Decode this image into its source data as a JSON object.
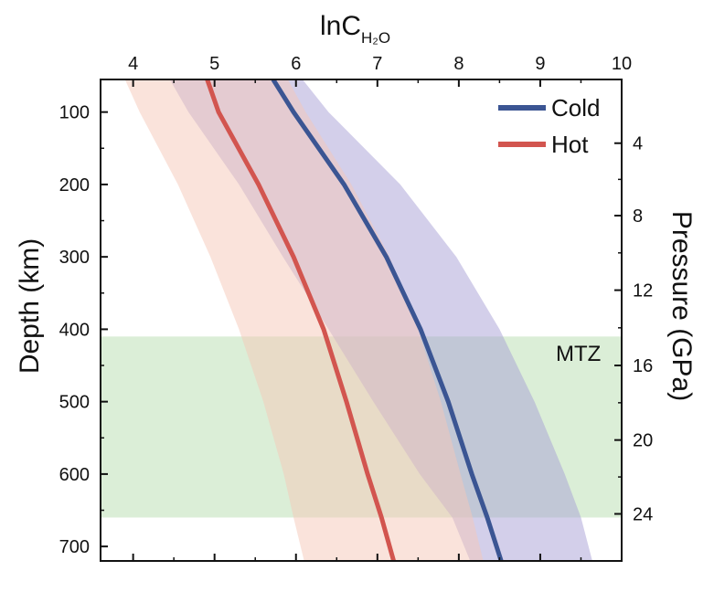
{
  "chart_data": {
    "type": "line",
    "title": "",
    "x_axis": {
      "label_main": "lnC",
      "label_sub": "H₂O",
      "position": "top",
      "ticks": [
        "4",
        "5",
        "6",
        "7",
        "8",
        "9",
        "10"
      ],
      "range": [
        3.6,
        10
      ]
    },
    "y_axis_left": {
      "label": "Depth (km)",
      "ticks": [
        "100",
        "200",
        "300",
        "400",
        "500",
        "600",
        "700"
      ],
      "range": [
        55,
        720
      ],
      "inverted": true
    },
    "y_axis_right": {
      "label": "Pressure (GPa)",
      "ticks": [
        "4",
        "8",
        "12",
        "16",
        "20",
        "24"
      ],
      "tick_depths_km": [
        143,
        243,
        346,
        450,
        553,
        655
      ]
    },
    "regions": [
      {
        "name": "MTZ",
        "label": "MTZ",
        "depth_range": [
          410,
          660
        ],
        "color": "#cfe8c9"
      }
    ],
    "series": [
      {
        "name": "Cold",
        "color": "#3b5593",
        "band_color": "#a79fd6",
        "depth": [
          55,
          100,
          200,
          300,
          400,
          500,
          600,
          660,
          720
        ],
        "x": [
          5.72,
          5.97,
          6.59,
          7.11,
          7.53,
          7.87,
          8.16,
          8.35,
          8.52
        ],
        "band_lower": [
          4.45,
          4.68,
          5.3,
          5.84,
          6.4,
          6.95,
          7.52,
          7.92,
          8.14
        ],
        "band_upper": [
          6.08,
          6.4,
          7.28,
          7.97,
          8.5,
          8.93,
          9.3,
          9.5,
          9.64
        ]
      },
      {
        "name": "Hot",
        "color": "#d2554f",
        "band_color": "#f5c7b8",
        "depth": [
          55,
          100,
          200,
          300,
          400,
          500,
          600,
          660,
          720
        ],
        "x": [
          4.91,
          5.05,
          5.54,
          5.97,
          6.34,
          6.62,
          6.88,
          7.05,
          7.2
        ],
        "band_lower": [
          3.9,
          4.08,
          4.55,
          4.95,
          5.3,
          5.6,
          5.85,
          5.97,
          6.1
        ],
        "band_upper": [
          5.9,
          6.12,
          6.68,
          7.15,
          7.5,
          7.78,
          8.02,
          8.17,
          8.3
        ]
      }
    ],
    "legend": {
      "placement": "top-right",
      "entries": [
        "Cold",
        "Hot"
      ]
    },
    "grid": false
  }
}
